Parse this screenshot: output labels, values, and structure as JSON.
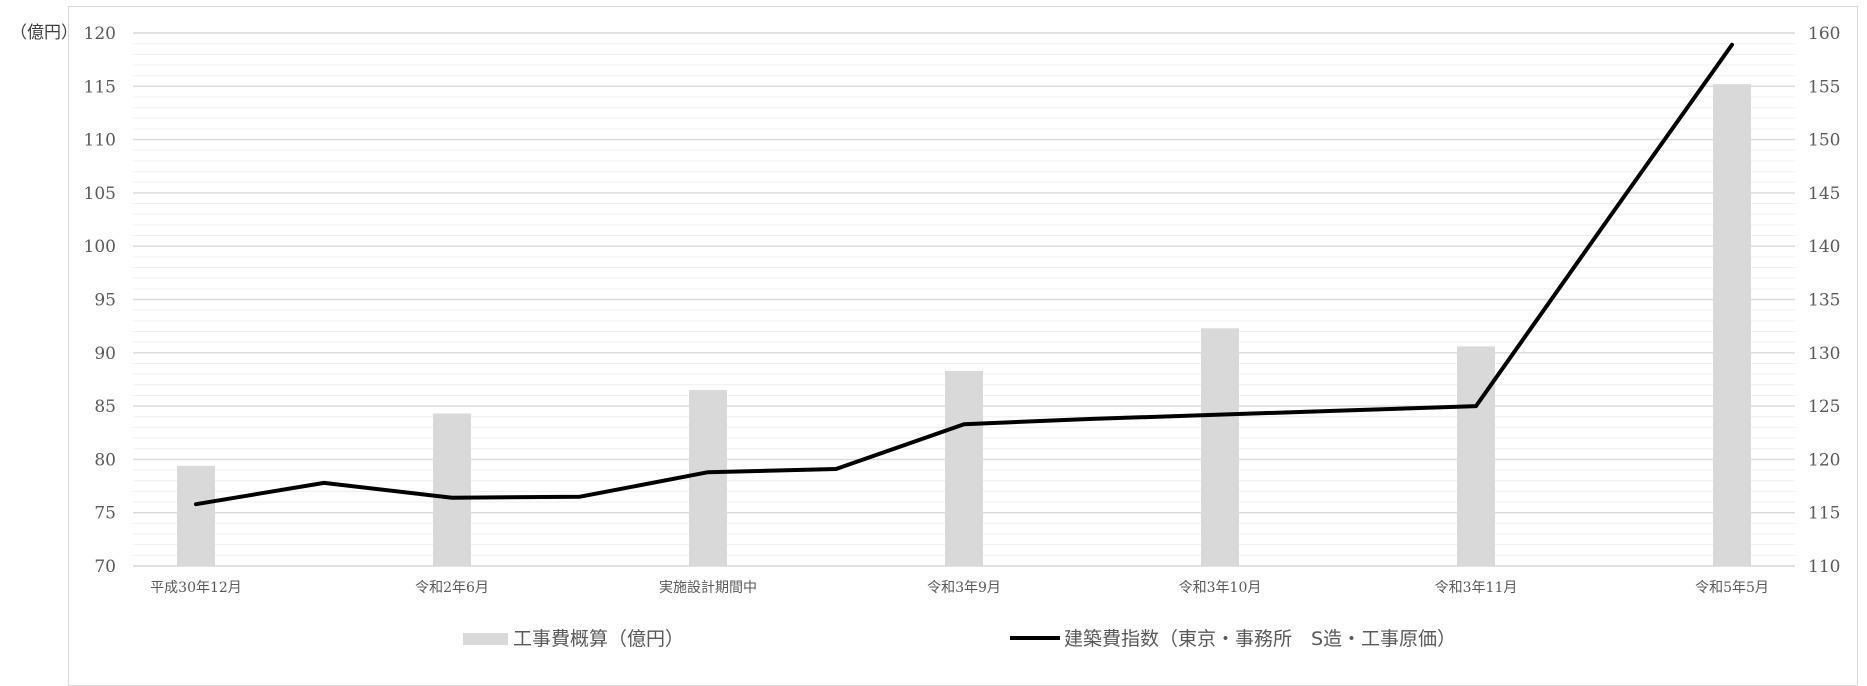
{
  "chart_data": {
    "type": "bar+line",
    "y_left_unit_label": "（億円）",
    "y_left": {
      "ylim": [
        70,
        120
      ],
      "major_step": 5,
      "minor_step": 1
    },
    "y_right": {
      "ylim": [
        110,
        160
      ],
      "major_step": 5
    },
    "x_points": 13,
    "category_labels": [
      {
        "index": 0,
        "label": "平成30年12月"
      },
      {
        "index": 2,
        "label": "令和2年6月"
      },
      {
        "index": 4,
        "label": "実施設計期間中"
      },
      {
        "index": 6,
        "label": "令和3年9月"
      },
      {
        "index": 8,
        "label": "令和3年10月"
      },
      {
        "index": 10,
        "label": "令和3年11月"
      },
      {
        "index": 12,
        "label": "令和5年5月"
      }
    ],
    "series": [
      {
        "name": "工事費概算（億円）",
        "kind": "bar",
        "axis": "left",
        "color": "#d9d9d9",
        "points": [
          {
            "index": 0,
            "value": 79.4
          },
          {
            "index": 2,
            "value": 84.3
          },
          {
            "index": 4,
            "value": 86.5
          },
          {
            "index": 6,
            "value": 88.3
          },
          {
            "index": 8,
            "value": 92.3
          },
          {
            "index": 10,
            "value": 90.6
          },
          {
            "index": 12,
            "value": 115.2
          }
        ]
      },
      {
        "name": "建築費指数（東京・事務所　S造・工事原価）",
        "kind": "line",
        "axis": "right",
        "color": "#000000",
        "values": [
          115.8,
          117.8,
          116.4,
          116.5,
          118.8,
          119.1,
          123.3,
          123.8,
          124.2,
          124.6,
          125.0,
          142.0,
          158.9
        ]
      }
    ],
    "grid": true,
    "legend_placement": "bottom"
  }
}
